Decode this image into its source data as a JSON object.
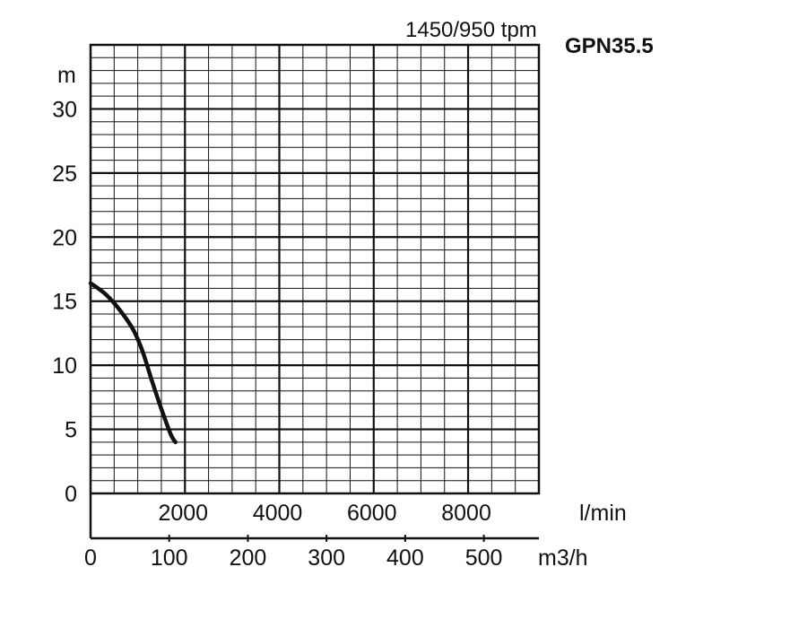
{
  "chart_data": {
    "type": "line",
    "speed_label": "1450/950 tpm",
    "model_label": "GPN35.5",
    "ylabel": "m",
    "ylim": [
      0,
      35
    ],
    "yticks": [
      0,
      5,
      10,
      15,
      20,
      25,
      30
    ],
    "x_lmin_unit": "l/min",
    "x_lmin_ticks": [
      2000,
      4000,
      6000,
      8000
    ],
    "x_lmin_max": 9500,
    "x_m3h_unit": "m3/h",
    "x_m3h_ticks": [
      0,
      100,
      200,
      300,
      400,
      500
    ],
    "x_m3h_max": 570,
    "grid": true,
    "series": [
      {
        "x_lmin": [
          0,
          300,
          600,
          900,
          1100,
          1300,
          1500,
          1700,
          1800
        ],
        "y": [
          16.4,
          15.6,
          14.4,
          12.8,
          11.1,
          8.8,
          6.6,
          4.6,
          4.0
        ]
      }
    ],
    "colors": {
      "curve": "#111111",
      "grid": "#111111",
      "text": "#111111"
    }
  }
}
